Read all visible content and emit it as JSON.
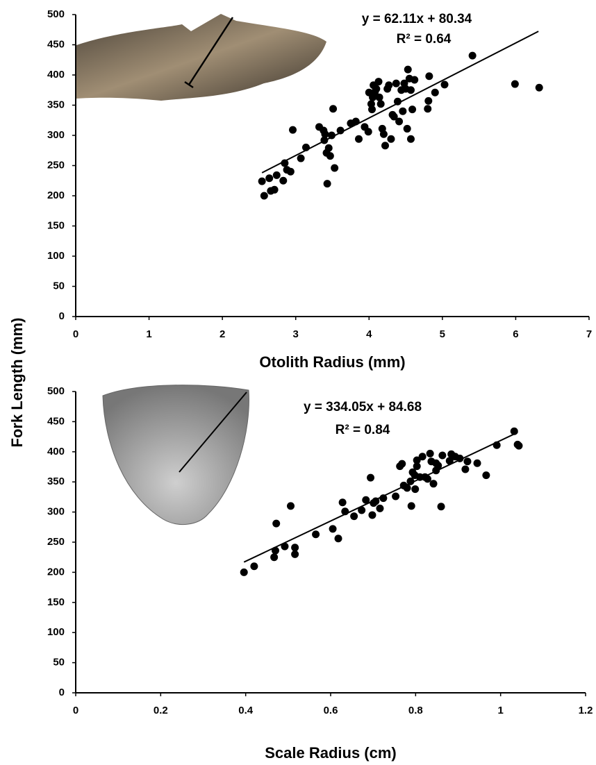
{
  "chart_data": [
    {
      "type": "scatter",
      "xlabel": "Otolith Radius (mm)",
      "ylabel": "Fork Length (mm)",
      "equation": "y = 62.11x + 80.34",
      "r_squared": "R² = 0.64",
      "color": "#000000",
      "xlim": [
        0,
        7
      ],
      "ylim": [
        0,
        500
      ],
      "xticks": [
        0,
        1,
        2,
        3,
        4,
        5,
        6,
        7
      ],
      "yticks": [
        0,
        50,
        100,
        150,
        200,
        250,
        300,
        350,
        400,
        450,
        500
      ],
      "trendline": {
        "slope": 62.11,
        "intercept": 80.34,
        "x": [
          2.54,
          6.31
        ]
      },
      "x": [
        2.54,
        2.57,
        2.64,
        2.66,
        2.71,
        2.74,
        2.83,
        2.85,
        2.88,
        2.93,
        2.96,
        3.07,
        3.14,
        3.32,
        3.38,
        3.4,
        3.39,
        3.42,
        3.45,
        3.47,
        3.43,
        3.51,
        3.53,
        3.49,
        3.61,
        3.75,
        3.82,
        3.86,
        3.94,
        3.99,
        4.03,
        4.04,
        4.05,
        4.06,
        4.08,
        4.1,
        4.13,
        4.14,
        4.16,
        4.18,
        4.2,
        4.22,
        4.25,
        4.27,
        4.3,
        4.32,
        4.34,
        4.37,
        4.39,
        4.41,
        4.44,
        4.46,
        4.48,
        4.5,
        4.52,
        4.53,
        4.55,
        4.57,
        4.59,
        4.57,
        4.62,
        4.8,
        4.81,
        4.82,
        4.9,
        5.03,
        5.41,
        5.99,
        6.32,
        4.0
      ],
      "values": [
        224,
        200,
        229,
        208,
        210,
        234,
        225,
        254,
        243,
        240,
        309,
        262,
        280,
        314,
        308,
        302,
        292,
        271,
        279,
        266,
        220,
        344,
        246,
        300,
        308,
        320,
        323,
        294,
        314,
        306,
        352,
        343,
        363,
        383,
        372,
        377,
        389,
        363,
        352,
        311,
        302,
        283,
        377,
        383,
        294,
        334,
        331,
        386,
        356,
        323,
        375,
        340,
        386,
        377,
        311,
        409,
        394,
        375,
        343,
        294,
        392,
        344,
        357,
        398,
        371,
        384,
        432,
        385,
        379,
        371
      ]
    },
    {
      "type": "scatter",
      "xlabel": "Scale Radius (cm)",
      "equation": "y = 334.05x + 84.68",
      "r_squared": "R² = 0.84",
      "color": "#000000",
      "xlim": [
        0,
        1.2
      ],
      "ylim": [
        0,
        500
      ],
      "xticks": [
        0,
        0.2,
        0.4,
        0.6,
        0.8,
        1,
        1.2
      ],
      "yticks": [
        0,
        50,
        100,
        150,
        200,
        250,
        300,
        350,
        400,
        450,
        500
      ],
      "trendline": {
        "slope": 334.05,
        "intercept": 84.68,
        "x": [
          0.396,
          1.04
        ]
      },
      "x": [
        0.396,
        0.42,
        0.467,
        0.47,
        0.472,
        0.492,
        0.506,
        0.516,
        0.516,
        0.565,
        0.605,
        0.618,
        0.628,
        0.634,
        0.655,
        0.673,
        0.683,
        0.694,
        0.698,
        0.701,
        0.706,
        0.716,
        0.724,
        0.753,
        0.763,
        0.768,
        0.772,
        0.78,
        0.79,
        0.788,
        0.793,
        0.798,
        0.799,
        0.803,
        0.803,
        0.81,
        0.816,
        0.822,
        0.828,
        0.834,
        0.837,
        0.842,
        0.848,
        0.848,
        0.853,
        0.86,
        0.863,
        0.88,
        0.884,
        0.893,
        0.904,
        0.917,
        0.922,
        0.945,
        0.966,
        0.991,
        1.032,
        1.04,
        1.043
      ],
      "values": [
        200,
        210,
        225,
        236,
        281,
        243,
        310,
        241,
        230,
        263,
        272,
        256,
        316,
        301,
        293,
        303,
        320,
        357,
        295,
        315,
        318,
        306,
        323,
        326,
        376,
        380,
        344,
        340,
        310,
        351,
        366,
        361,
        338,
        376,
        386,
        358,
        392,
        358,
        355,
        397,
        384,
        347,
        381,
        369,
        377,
        309,
        394,
        385,
        396,
        392,
        389,
        371,
        384,
        381,
        361,
        411,
        434,
        412,
        410
      ]
    }
  ]
}
